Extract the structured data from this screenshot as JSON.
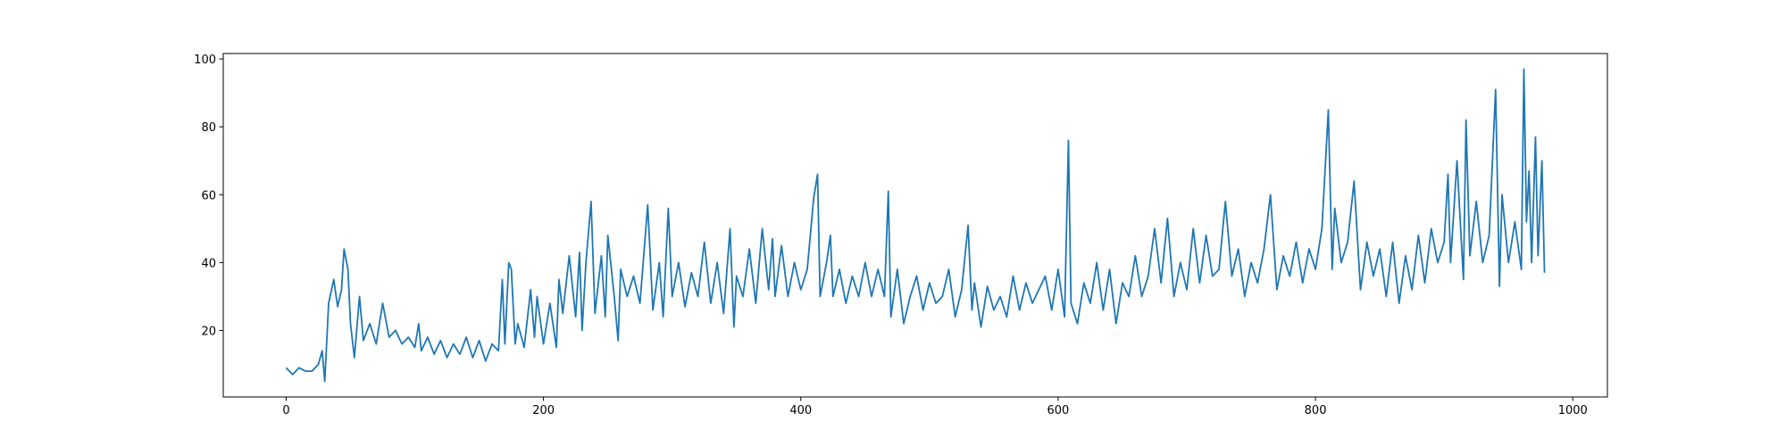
{
  "chart_data": {
    "type": "line",
    "color": "#1f77b4",
    "x": [
      0,
      5,
      10,
      15,
      20,
      25,
      28,
      30,
      33,
      37,
      40,
      43,
      45,
      48,
      50,
      53,
      57,
      60,
      65,
      70,
      75,
      80,
      85,
      90,
      95,
      100,
      103,
      105,
      110,
      115,
      120,
      125,
      130,
      135,
      140,
      145,
      150,
      155,
      160,
      165,
      168,
      170,
      173,
      175,
      178,
      180,
      185,
      190,
      193,
      195,
      200,
      205,
      210,
      212,
      215,
      220,
      225,
      228,
      230,
      233,
      237,
      240,
      245,
      248,
      250,
      255,
      258,
      260,
      265,
      270,
      275,
      281,
      285,
      290,
      293,
      297,
      300,
      305,
      310,
      315,
      320,
      325,
      330,
      335,
      340,
      345,
      348,
      350,
      355,
      360,
      365,
      370,
      375,
      378,
      380,
      385,
      390,
      395,
      400,
      405,
      410,
      413,
      415,
      420,
      423,
      425,
      430,
      435,
      440,
      445,
      450,
      455,
      460,
      465,
      468,
      470,
      475,
      480,
      485,
      490,
      495,
      500,
      505,
      510,
      515,
      520,
      525,
      530,
      533,
      535,
      540,
      545,
      550,
      555,
      560,
      565,
      570,
      575,
      580,
      585,
      590,
      595,
      600,
      605,
      608,
      610,
      615,
      620,
      625,
      630,
      635,
      640,
      645,
      650,
      655,
      660,
      665,
      670,
      675,
      680,
      685,
      690,
      695,
      700,
      705,
      710,
      715,
      720,
      725,
      730,
      735,
      740,
      745,
      750,
      755,
      760,
      765,
      770,
      775,
      780,
      785,
      790,
      795,
      800,
      805,
      810,
      813,
      815,
      820,
      825,
      830,
      835,
      840,
      845,
      850,
      855,
      860,
      865,
      870,
      875,
      880,
      885,
      890,
      895,
      900,
      903,
      905,
      910,
      915,
      917,
      920,
      925,
      930,
      935,
      940,
      943,
      945,
      950,
      955,
      960,
      962,
      964,
      966,
      968,
      971,
      973,
      976,
      978
    ],
    "values": [
      9,
      7,
      9,
      8,
      8,
      10,
      14,
      5,
      28,
      35,
      27,
      32,
      44,
      38,
      22,
      12,
      30,
      17,
      22,
      16,
      28,
      18,
      20,
      16,
      18,
      15,
      22,
      14,
      18,
      13,
      17,
      12,
      16,
      13,
      18,
      12,
      17,
      11,
      16,
      14,
      35,
      16,
      40,
      38,
      16,
      22,
      15,
      32,
      18,
      30,
      16,
      28,
      15,
      35,
      25,
      42,
      24,
      43,
      20,
      40,
      58,
      25,
      42,
      24,
      48,
      30,
      17,
      38,
      30,
      36,
      28,
      57,
      26,
      40,
      24,
      56,
      30,
      40,
      27,
      37,
      30,
      46,
      28,
      40,
      25,
      50,
      21,
      36,
      30,
      44,
      28,
      50,
      32,
      47,
      30,
      45,
      30,
      40,
      32,
      38,
      59,
      66,
      30,
      40,
      48,
      30,
      38,
      28,
      36,
      30,
      40,
      30,
      38,
      30,
      61,
      24,
      38,
      22,
      30,
      36,
      26,
      34,
      28,
      30,
      38,
      24,
      32,
      51,
      26,
      34,
      21,
      33,
      26,
      30,
      24,
      36,
      26,
      34,
      28,
      32,
      36,
      26,
      38,
      24,
      76,
      28,
      22,
      34,
      28,
      40,
      26,
      38,
      22,
      34,
      30,
      42,
      30,
      36,
      50,
      34,
      53,
      30,
      40,
      32,
      50,
      34,
      48,
      36,
      38,
      58,
      36,
      44,
      30,
      40,
      34,
      44,
      60,
      32,
      42,
      36,
      46,
      34,
      44,
      38,
      50,
      85,
      38,
      56,
      40,
      46,
      64,
      32,
      46,
      36,
      44,
      30,
      46,
      28,
      42,
      32,
      48,
      34,
      50,
      40,
      46,
      66,
      40,
      70,
      35,
      82,
      42,
      58,
      40,
      48,
      91,
      33,
      60,
      40,
      52,
      38,
      97,
      52,
      67,
      40,
      77,
      42,
      70,
      37
    ],
    "xlim": [
      -48.9,
      1026.9
    ],
    "ylim": [
      0.4,
      101.6
    ],
    "xticks": [
      0,
      200,
      400,
      600,
      800,
      1000
    ],
    "yticks": [
      20,
      40,
      60,
      80,
      100
    ]
  }
}
